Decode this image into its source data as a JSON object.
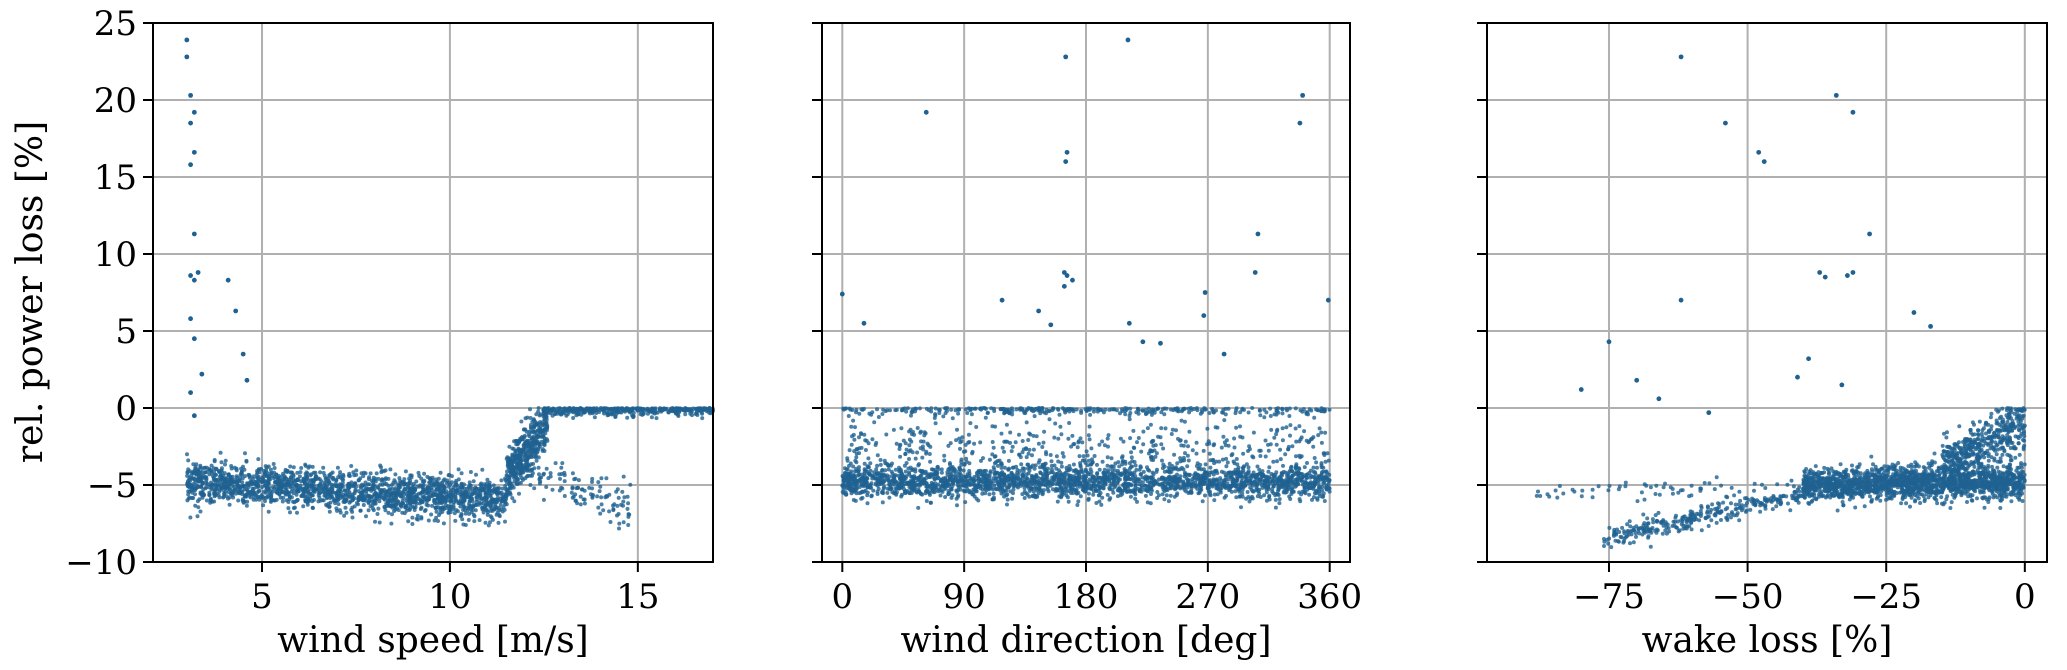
{
  "chart_data": [
    {
      "type": "scatter",
      "title": "",
      "xlabel": "wind speed [m/s]",
      "ylabel": "rel. power loss [%]",
      "xlim": [
        2.1,
        17.0
      ],
      "ylim": [
        -10,
        25
      ],
      "xticks": [
        5,
        10,
        15
      ],
      "xtick_labels": [
        "5",
        "10",
        "15"
      ],
      "yticks": [
        -10,
        -5,
        0,
        5,
        10,
        15,
        20,
        25
      ],
      "ytick_labels": [
        "−10",
        "−5",
        "0",
        "5",
        "10",
        "15",
        "20",
        "25"
      ],
      "grid": true,
      "marker_color": "#1f6191",
      "series": [
        {
          "x": [
            3.0,
            3.0,
            3.1,
            3.2,
            3.1,
            3.2,
            3.1,
            3.2,
            3.3,
            3.1,
            3.2,
            4.1,
            4.3,
            4.5,
            4.6,
            3.1,
            3.2,
            3.4,
            3.1,
            3.2
          ],
          "y": [
            23.9,
            22.8,
            20.3,
            19.2,
            18.5,
            16.6,
            15.8,
            11.3,
            8.8,
            8.6,
            8.3,
            8.3,
            6.3,
            3.5,
            1.8,
            5.8,
            4.5,
            2.2,
            1.0,
            -0.5
          ]
        }
      ],
      "cloud": [
        {
          "x": [
            3.0,
            11.5
          ],
          "center": [
            -4.8,
            -6.0
          ],
          "spread": 1.1,
          "n": 1800
        },
        {
          "x": [
            11.5,
            12.6
          ],
          "center": [
            -4.5,
            -1.0
          ],
          "spread": 1.4,
          "n": 420
        },
        {
          "x": [
            12.5,
            17.0
          ],
          "center": [
            -0.1,
            -0.1
          ],
          "spread": 0.35,
          "n": 380
        },
        {
          "x": [
            12.0,
            14.8
          ],
          "center": [
            -4.0,
            -6.5
          ],
          "spread": 1.2,
          "n": 120
        }
      ]
    },
    {
      "type": "scatter",
      "title": "",
      "xlabel": "wind direction [deg]",
      "ylabel": "",
      "xlim": [
        -15,
        375
      ],
      "ylim": [
        -10,
        25
      ],
      "xticks": [
        0,
        90,
        180,
        270,
        360
      ],
      "xtick_labels": [
        "0",
        "90",
        "180",
        "270",
        "360"
      ],
      "yticks": [
        -10,
        -5,
        0,
        5,
        10,
        15,
        20,
        25
      ],
      "grid": true,
      "marker_color": "#1f6191",
      "series": [
        {
          "x": [
            211,
            165,
            166,
            165,
            62,
            340,
            338,
            307,
            305,
            164,
            166,
            268,
            267,
            359,
            0,
            16,
            118,
            145,
            154,
            164,
            170,
            212,
            235,
            222,
            282
          ],
          "y": [
            23.9,
            22.8,
            16.6,
            16.0,
            19.2,
            20.3,
            18.5,
            11.3,
            8.8,
            8.8,
            8.6,
            7.5,
            6.0,
            7.0,
            7.4,
            5.5,
            7.0,
            6.3,
            5.4,
            7.9,
            8.3,
            5.5,
            4.2,
            4.3,
            3.5
          ]
        }
      ],
      "cloud": [
        {
          "x": [
            0,
            360
          ],
          "center": [
            -4.8,
            -4.8
          ],
          "spread": 0.9,
          "n": 2200
        },
        {
          "x": [
            0,
            360
          ],
          "center": [
            -0.1,
            -0.1
          ],
          "spread": 0.3,
          "n": 300
        },
        {
          "x": [
            0,
            360
          ],
          "center": [
            -2.8,
            -2.8
          ],
          "spread": 1.8,
          "n": 500
        }
      ]
    },
    {
      "type": "scatter",
      "title": "",
      "xlabel": "wake loss [%]",
      "ylabel": "",
      "xlim": [
        -97,
        4
      ],
      "ylim": [
        -10,
        25
      ],
      "xticks": [
        -75,
        -50,
        -25,
        0
      ],
      "xtick_labels": [
        "−75",
        "−50",
        "−25",
        "0"
      ],
      "yticks": [
        -10,
        -5,
        0,
        5,
        10,
        15,
        20,
        25
      ],
      "grid": true,
      "marker_color": "#1f6191",
      "series": [
        {
          "x": [
            -62,
            -34,
            -31,
            -54,
            -48,
            -47,
            -28,
            -37,
            -36,
            -32,
            -31,
            -62,
            -20,
            -17,
            -80,
            -75,
            -70,
            -66,
            -57,
            -41,
            -39,
            -33
          ],
          "y": [
            22.8,
            20.3,
            19.2,
            18.5,
            16.6,
            16.0,
            11.3,
            8.8,
            8.5,
            8.6,
            8.8,
            7.0,
            6.2,
            5.3,
            1.2,
            4.3,
            1.8,
            0.6,
            -0.3,
            2.0,
            3.2,
            1.5
          ]
        }
      ],
      "cloud": [
        {
          "x": [
            -76,
            -40
          ],
          "center": [
            -8.5,
            -5.5
          ],
          "spread": 0.6,
          "n": 300
        },
        {
          "x": [
            -40,
            0
          ],
          "center": [
            -5.0,
            -4.8
          ],
          "spread": 0.9,
          "n": 1700
        },
        {
          "x": [
            -15,
            0
          ],
          "center": [
            -4.0,
            -1.0
          ],
          "spread": 1.5,
          "n": 500
        },
        {
          "x": [
            -90,
            -40
          ],
          "center": [
            -5.5,
            -5.0
          ],
          "spread": 0.5,
          "n": 60
        }
      ]
    }
  ]
}
